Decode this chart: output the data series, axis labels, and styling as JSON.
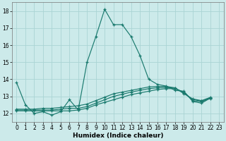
{
  "xlabel": "Humidex (Indice chaleur)",
  "background_color": "#cceaea",
  "grid_color": "#aad4d4",
  "line_color": "#1a7a6e",
  "xlim": [
    -0.5,
    23.5
  ],
  "ylim": [
    11.5,
    18.5
  ],
  "yticks": [
    12,
    13,
    14,
    15,
    16,
    17,
    18
  ],
  "xticks": [
    0,
    1,
    2,
    3,
    4,
    5,
    6,
    7,
    8,
    9,
    10,
    11,
    12,
    13,
    14,
    15,
    16,
    17,
    18,
    19,
    20,
    21,
    22,
    23
  ],
  "line1_x": [
    0,
    1,
    2,
    3,
    4,
    5,
    6,
    7,
    8,
    9,
    10,
    11,
    12,
    13,
    14,
    15,
    16,
    17,
    18,
    19,
    20,
    21,
    22
  ],
  "line1_y": [
    13.8,
    12.5,
    12.0,
    12.1,
    11.9,
    12.1,
    12.8,
    12.2,
    15.0,
    16.5,
    18.1,
    17.2,
    17.2,
    16.5,
    15.4,
    14.0,
    13.7,
    13.6,
    13.35,
    13.3,
    12.7,
    12.6,
    12.9
  ],
  "line2_x": [
    0,
    1,
    2,
    3,
    4,
    5,
    6,
    7,
    8,
    9,
    10,
    11,
    12,
    13,
    14,
    15,
    16,
    17,
    18,
    19,
    20,
    21,
    22
  ],
  "line2_y": [
    12.15,
    12.15,
    12.15,
    12.15,
    12.15,
    12.15,
    12.15,
    12.2,
    12.3,
    12.5,
    12.65,
    12.8,
    12.95,
    13.1,
    13.2,
    13.3,
    13.4,
    13.45,
    13.45,
    13.25,
    12.75,
    12.68,
    12.88
  ],
  "line3_x": [
    0,
    1,
    2,
    3,
    4,
    5,
    6,
    7,
    8,
    9,
    10,
    11,
    12,
    13,
    14,
    15,
    16,
    17,
    18,
    19,
    20,
    21,
    22
  ],
  "line3_y": [
    12.2,
    12.2,
    12.2,
    12.2,
    12.2,
    12.25,
    12.3,
    12.3,
    12.4,
    12.6,
    12.8,
    13.0,
    13.12,
    13.25,
    13.35,
    13.45,
    13.5,
    13.52,
    13.48,
    13.2,
    12.82,
    12.72,
    12.92
  ],
  "line4_x": [
    0,
    1,
    2,
    3,
    4,
    5,
    6,
    7,
    8,
    9,
    10,
    11,
    12,
    13,
    14,
    15,
    16,
    17,
    18,
    19,
    20,
    21,
    22
  ],
  "line4_y": [
    12.25,
    12.25,
    12.25,
    12.3,
    12.3,
    12.35,
    12.4,
    12.45,
    12.55,
    12.75,
    12.95,
    13.15,
    13.25,
    13.35,
    13.45,
    13.55,
    13.58,
    13.58,
    13.5,
    13.15,
    12.85,
    12.75,
    12.94
  ]
}
